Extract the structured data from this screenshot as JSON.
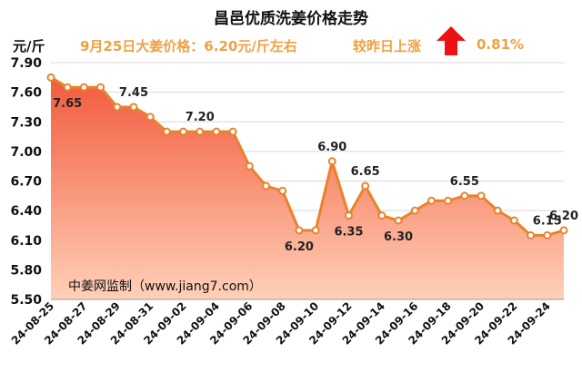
{
  "header": {
    "title": "昌邑优质洗姜价格走势",
    "y_unit": "元/斤",
    "price_note": "9月25日大姜价格：6.20元/斤左右",
    "change_label": "较昨日上涨",
    "change_pct": "0.81%",
    "change_direction": "up-arrow-icon",
    "accent_color": "#f0a040",
    "arrow_color": "#ee1111"
  },
  "watermark": "中姜网监制（www.jiang7.com）",
  "chart_data": {
    "type": "area",
    "x": [
      "24-08-25",
      "24-08-26",
      "24-08-27",
      "24-08-28",
      "24-08-29",
      "24-08-30",
      "24-08-31",
      "24-09-01",
      "24-09-02",
      "24-09-03",
      "24-09-04",
      "24-09-05",
      "24-09-06",
      "24-09-07",
      "24-09-08",
      "24-09-09",
      "24-09-10",
      "24-09-11",
      "24-09-12",
      "24-09-13",
      "24-09-14",
      "24-09-15",
      "24-09-16",
      "24-09-17",
      "24-09-18",
      "24-09-19",
      "24-09-20",
      "24-09-21",
      "24-09-22",
      "24-09-23",
      "24-09-24",
      "24-09-25"
    ],
    "y": [
      7.75,
      7.65,
      7.65,
      7.65,
      7.45,
      7.45,
      7.35,
      7.2,
      7.2,
      7.2,
      7.2,
      7.2,
      6.85,
      6.65,
      6.6,
      6.2,
      6.2,
      6.9,
      6.35,
      6.65,
      6.35,
      6.3,
      6.4,
      6.5,
      6.5,
      6.55,
      6.55,
      6.4,
      6.3,
      6.15,
      6.15,
      6.2
    ],
    "tick_labels_x": [
      "24-08-25",
      "24-08-27",
      "24-08-29",
      "24-08-31",
      "24-09-02",
      "24-09-04",
      "24-09-06",
      "24-09-08",
      "24-09-10",
      "24-09-12",
      "24-09-14",
      "24-09-16",
      "24-09-18",
      "24-09-20",
      "24-09-22",
      "24-09-24"
    ],
    "tick_labels_y": [
      "5.50",
      "5.80",
      "6.10",
      "6.40",
      "6.70",
      "7.00",
      "7.30",
      "7.60",
      "7.90"
    ],
    "ylim": [
      5.5,
      7.9
    ],
    "data_labels": [
      {
        "i": 1,
        "text": "7.65"
      },
      {
        "i": 5,
        "text": "7.45"
      },
      {
        "i": 9,
        "text": "7.20"
      },
      {
        "i": 15,
        "text": "6.20"
      },
      {
        "i": 17,
        "text": "6.90"
      },
      {
        "i": 18,
        "text": "6.35"
      },
      {
        "i": 19,
        "text": "6.65"
      },
      {
        "i": 21,
        "text": "6.30"
      },
      {
        "i": 25,
        "text": "6.55"
      },
      {
        "i": 30,
        "text": "6.15"
      },
      {
        "i": 31,
        "text": "6.20"
      }
    ],
    "line_color": "#e8832a",
    "fill_top_color": "#f25a3c",
    "fill_bottom_color": "#ffd0b8",
    "grid": true
  }
}
